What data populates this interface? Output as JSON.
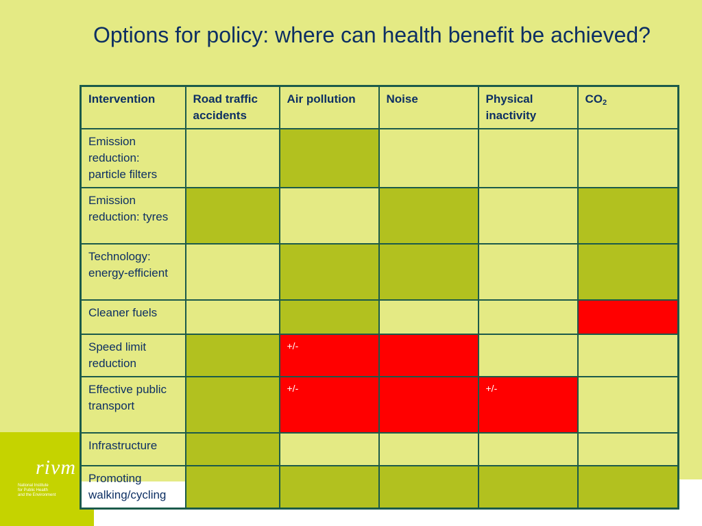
{
  "slide": {
    "title": "Options for policy: where can health benefit be achieved?"
  },
  "colors": {
    "background": "#e4ea84",
    "benefit_olive": "#b2c11f",
    "adverse_red": "#ff0000",
    "text": "#0d2f63",
    "border": "#1b5a4a",
    "logo_green": "#c5d300"
  },
  "table": {
    "headers": [
      "Intervention",
      "Road traffic accidents",
      "Air pollution",
      "Noise",
      "Physical inactivity",
      "CO",
      "2"
    ],
    "rows": [
      {
        "label": "Emission reduction: particle filters",
        "cells": [
          "",
          "olive",
          "",
          "",
          ""
        ],
        "texts": [
          "",
          "",
          "",
          "",
          ""
        ]
      },
      {
        "label": "Emission reduction: tyres",
        "cells": [
          "olive",
          "",
          "olive",
          "",
          "olive"
        ],
        "texts": [
          "",
          "",
          "",
          "",
          ""
        ]
      },
      {
        "label": "Technology: energy-efficient",
        "cells": [
          "",
          "olive",
          "olive",
          "",
          "olive"
        ],
        "texts": [
          "",
          "",
          "",
          "",
          ""
        ]
      },
      {
        "label": "Cleaner fuels",
        "cells": [
          "",
          "olive",
          "",
          "",
          "red"
        ],
        "texts": [
          "",
          "",
          "",
          "",
          ""
        ]
      },
      {
        "label": "Speed limit reduction",
        "cells": [
          "olive",
          "red",
          "red",
          "",
          ""
        ],
        "texts": [
          "",
          "+/-",
          "",
          "",
          ""
        ]
      },
      {
        "label": "Effective public transport",
        "cells": [
          "olive",
          "red",
          "red",
          "red",
          ""
        ],
        "texts": [
          "",
          "+/-",
          "",
          "+/-",
          ""
        ]
      },
      {
        "label": "Infrastructure",
        "cells": [
          "olive",
          "",
          "",
          "",
          ""
        ],
        "texts": [
          "",
          "",
          "",
          "",
          ""
        ]
      },
      {
        "label": "Promoting walking/cycling",
        "cells": [
          "olive",
          "olive",
          "olive",
          "olive",
          "olive"
        ],
        "texts": [
          "",
          "",
          "",
          "",
          ""
        ]
      }
    ]
  },
  "logo": {
    "wordmark": "rivm",
    "subtitle_lines": [
      "National Institute",
      "for Public Health",
      "and the Environment"
    ]
  }
}
